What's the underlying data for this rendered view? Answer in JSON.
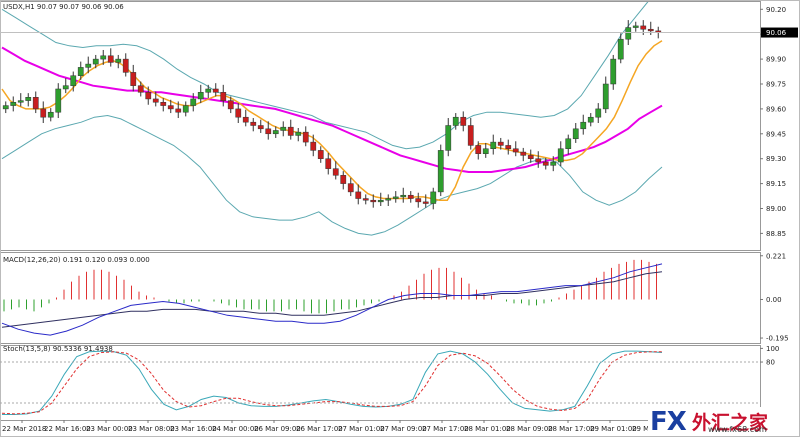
{
  "chart_data": [
    {
      "type": "candlestick",
      "title": "USDX,H1  90.07 90.07 90.06 90.06",
      "symbol": "USDX,H1",
      "ohlc_label": "90.07 90.07 90.06 90.06",
      "current_price": "90.06",
      "ylim": [
        88.75,
        90.25
      ],
      "y_ticks": [
        "90.20",
        "90.05",
        "89.90",
        "89.75",
        "89.60",
        "89.45",
        "89.30",
        "89.15",
        "89.00",
        "88.85"
      ],
      "colors": {
        "bull": "#2e9e2e",
        "bear": "#c81e1e",
        "ma_fast": "#f5a623",
        "ma_slow": "#e800e8",
        "bands": "#5ba8b0",
        "mid": "#e0e0e0"
      },
      "close": [
        89.62,
        89.64,
        89.65,
        89.67,
        89.6,
        89.55,
        89.58,
        89.72,
        89.74,
        89.8,
        89.85,
        89.87,
        89.9,
        89.92,
        89.88,
        89.9,
        89.82,
        89.74,
        89.7,
        89.66,
        89.64,
        89.62,
        89.6,
        89.58,
        89.62,
        89.66,
        89.7,
        89.72,
        89.7,
        89.65,
        89.6,
        89.55,
        89.52,
        89.5,
        89.48,
        89.45,
        89.47,
        89.49,
        89.44,
        89.46,
        89.4,
        89.35,
        89.3,
        89.24,
        89.2,
        89.15,
        89.1,
        89.06,
        89.05,
        89.04,
        89.05,
        89.06,
        89.07,
        89.08,
        89.06,
        89.04,
        89.03,
        89.1,
        89.35,
        89.5,
        89.55,
        89.5,
        89.38,
        89.33,
        89.36,
        89.4,
        89.38,
        89.36,
        89.34,
        89.32,
        89.3,
        89.28,
        89.26,
        89.28,
        89.36,
        89.42,
        89.48,
        89.52,
        89.55,
        89.6,
        89.75,
        89.9,
        90.02,
        90.09,
        90.1,
        90.08,
        90.07,
        90.06
      ],
      "ma_fast": [
        89.72,
        89.65,
        89.62,
        89.6,
        89.6,
        89.6,
        89.61,
        89.64,
        89.68,
        89.73,
        89.79,
        89.83,
        89.86,
        89.88,
        89.89,
        89.87,
        89.83,
        89.78,
        89.73,
        89.7,
        89.67,
        89.65,
        89.63,
        89.62,
        89.62,
        89.64,
        89.66,
        89.68,
        89.68,
        89.66,
        89.63,
        89.59,
        89.56,
        89.53,
        89.5,
        89.48,
        89.47,
        89.46,
        89.45,
        89.43,
        89.39,
        89.34,
        89.28,
        89.23,
        89.18,
        89.13,
        89.09,
        89.07,
        89.06,
        89.06,
        89.06,
        89.06,
        89.07,
        89.07,
        89.06,
        89.05,
        89.05,
        89.13,
        89.25,
        89.34,
        89.39,
        89.39,
        89.37,
        89.36,
        89.35,
        89.34,
        89.33,
        89.32,
        89.31,
        89.3,
        89.29,
        89.29,
        89.3,
        89.33,
        89.38,
        89.43,
        89.48,
        89.55,
        89.65,
        89.76,
        89.86,
        89.93,
        89.98,
        90.01
      ],
      "ma_slow": [
        89.97,
        89.93,
        89.89,
        89.86,
        89.83,
        89.8,
        89.78,
        89.76,
        89.74,
        89.73,
        89.72,
        89.71,
        89.71,
        89.7,
        89.7,
        89.69,
        89.68,
        89.67,
        89.66,
        89.65,
        89.64,
        89.63,
        89.62,
        89.61,
        89.6,
        89.58,
        89.56,
        89.54,
        89.52,
        89.5,
        89.47,
        89.44,
        89.41,
        89.38,
        89.35,
        89.32,
        89.3,
        89.28,
        89.26,
        89.24,
        89.23,
        89.22,
        89.22,
        89.22,
        89.23,
        89.24,
        89.25,
        89.27,
        89.29,
        89.31,
        89.33,
        89.35,
        89.37,
        89.4,
        89.44,
        89.48,
        89.54,
        89.58,
        89.62
      ],
      "upper_band": [
        90.2,
        90.15,
        90.1,
        90.05,
        90.0,
        89.98,
        89.97,
        89.98,
        89.98,
        89.99,
        89.98,
        89.95,
        89.9,
        89.84,
        89.79,
        89.75,
        89.7,
        89.68,
        89.66,
        89.64,
        89.62,
        89.6,
        89.58,
        89.56,
        89.52,
        89.5,
        89.48,
        89.46,
        89.42,
        89.38,
        89.36,
        89.37,
        89.4,
        89.45,
        89.52,
        89.56,
        89.58,
        89.58,
        89.57,
        89.56,
        89.55,
        89.56,
        89.6,
        89.68,
        89.8,
        89.92,
        90.05,
        90.15,
        90.25,
        90.3
      ],
      "lower_band": [
        89.3,
        89.35,
        89.4,
        89.45,
        89.48,
        89.5,
        89.52,
        89.55,
        89.56,
        89.54,
        89.5,
        89.46,
        89.42,
        89.38,
        89.32,
        89.25,
        89.15,
        89.05,
        88.98,
        88.95,
        88.94,
        88.93,
        88.93,
        88.95,
        88.98,
        88.92,
        88.88,
        88.85,
        88.84,
        88.86,
        88.9,
        88.95,
        89.0,
        89.05,
        89.08,
        89.1,
        89.12,
        89.15,
        89.2,
        89.25,
        89.28,
        89.3,
        89.28,
        89.2,
        89.1,
        89.05,
        89.02,
        89.05,
        89.1,
        89.18,
        89.25
      ]
    },
    {
      "type": "bar",
      "title": "MACD(12,26,20) 0.191 0.120 0.093 0.000",
      "indicator": "MACD(12,26,20)",
      "values_label": "0.191 0.120 0.093 0.000",
      "ylim": [
        -0.22,
        0.24
      ],
      "y_ticks": [
        "0.221",
        "0.00",
        "-0.195"
      ],
      "histogram": [
        -0.06,
        -0.05,
        -0.04,
        -0.05,
        -0.06,
        -0.04,
        -0.02,
        0.01,
        0.05,
        0.09,
        0.12,
        0.14,
        0.15,
        0.15,
        0.14,
        0.12,
        0.1,
        0.07,
        0.04,
        0.02,
        0.01,
        0.0,
        -0.01,
        -0.02,
        -0.02,
        -0.01,
        -0.01,
        0.0,
        -0.01,
        -0.02,
        -0.03,
        -0.04,
        -0.05,
        -0.05,
        -0.05,
        -0.06,
        -0.06,
        -0.06,
        -0.05,
        -0.05,
        -0.06,
        -0.07,
        -0.07,
        -0.07,
        -0.06,
        -0.05,
        -0.05,
        -0.04,
        -0.03,
        -0.02,
        -0.01,
        0.0,
        0.02,
        0.04,
        0.07,
        0.1,
        0.13,
        0.15,
        0.16,
        0.16,
        0.14,
        0.11,
        0.08,
        0.05,
        0.03,
        0.02,
        0.0,
        -0.01,
        -0.02,
        -0.02,
        -0.03,
        -0.03,
        -0.02,
        -0.01,
        0.01,
        0.03,
        0.05,
        0.07,
        0.09,
        0.11,
        0.14,
        0.16,
        0.18,
        0.19,
        0.2,
        0.2,
        0.19,
        0.18
      ],
      "signal": [
        -0.12,
        -0.15,
        -0.17,
        -0.18,
        -0.16,
        -0.13,
        -0.09,
        -0.06,
        -0.03,
        -0.02,
        -0.01,
        -0.02,
        -0.04,
        -0.06,
        -0.08,
        -0.09,
        -0.1,
        -0.11,
        -0.11,
        -0.12,
        -0.12,
        -0.11,
        -0.08,
        -0.04,
        0.0,
        0.02,
        0.03,
        0.03,
        0.02,
        0.02,
        0.03,
        0.04,
        0.04,
        0.05,
        0.06,
        0.07,
        0.07,
        0.09,
        0.11,
        0.14,
        0.16,
        0.18
      ],
      "main": [
        -0.14,
        -0.13,
        -0.12,
        -0.11,
        -0.1,
        -0.09,
        -0.08,
        -0.07,
        -0.06,
        -0.06,
        -0.05,
        -0.05,
        -0.05,
        -0.06,
        -0.06,
        -0.06,
        -0.07,
        -0.07,
        -0.08,
        -0.08,
        -0.08,
        -0.07,
        -0.06,
        -0.04,
        -0.02,
        0.0,
        0.01,
        0.01,
        0.02,
        0.02,
        0.02,
        0.03,
        0.03,
        0.04,
        0.05,
        0.06,
        0.07,
        0.08,
        0.09,
        0.11,
        0.13,
        0.14
      ]
    },
    {
      "type": "line",
      "title": "Stoch(13,5,8) 90.5336 91.4938",
      "indicator": "Stoch(13,5,8)",
      "values_label": "90.5336 91.4938",
      "ylim": [
        -5,
        105
      ],
      "y_ticks": [
        "100",
        "80"
      ],
      "main": [
        3,
        3,
        4,
        8,
        30,
        62,
        88,
        95,
        96,
        95,
        90,
        70,
        40,
        18,
        10,
        15,
        25,
        30,
        28,
        20,
        16,
        15,
        15,
        17,
        20,
        23,
        25,
        22,
        18,
        15,
        14,
        15,
        18,
        25,
        65,
        92,
        96,
        92,
        80,
        62,
        40,
        20,
        12,
        10,
        8,
        10,
        15,
        45,
        78,
        92,
        96,
        96,
        95,
        94
      ],
      "signal": [
        5,
        4,
        5,
        7,
        20,
        45,
        70,
        88,
        94,
        95,
        93,
        83,
        63,
        38,
        22,
        14,
        16,
        22,
        27,
        27,
        22,
        18,
        16,
        16,
        18,
        20,
        22,
        22,
        20,
        17,
        15,
        15,
        16,
        22,
        45,
        75,
        90,
        93,
        89,
        78,
        60,
        40,
        25,
        15,
        11,
        9,
        12,
        25,
        55,
        80,
        90,
        94,
        95,
        95
      ]
    }
  ],
  "x_axis": [
    "22 Mar 2018",
    "22 Mar 16:00",
    "23 Mar 00:00",
    "23 Mar 08:00",
    "23 Mar 16:00",
    "24 Mar 00:00",
    "26 Mar 09:00",
    "26 Mar 17:00",
    "27 Mar 01:00",
    "27 Mar 09:00",
    "27 Mar 17:00",
    "28 Mar 01:00",
    "28 Mar 09:00",
    "28 Mar 17:00",
    "29 Mar 01:00",
    "29 Mar 09:00"
  ],
  "logo": {
    "fx": "FX",
    "cn": "外汇之家",
    "url": "www.fx68.com"
  }
}
